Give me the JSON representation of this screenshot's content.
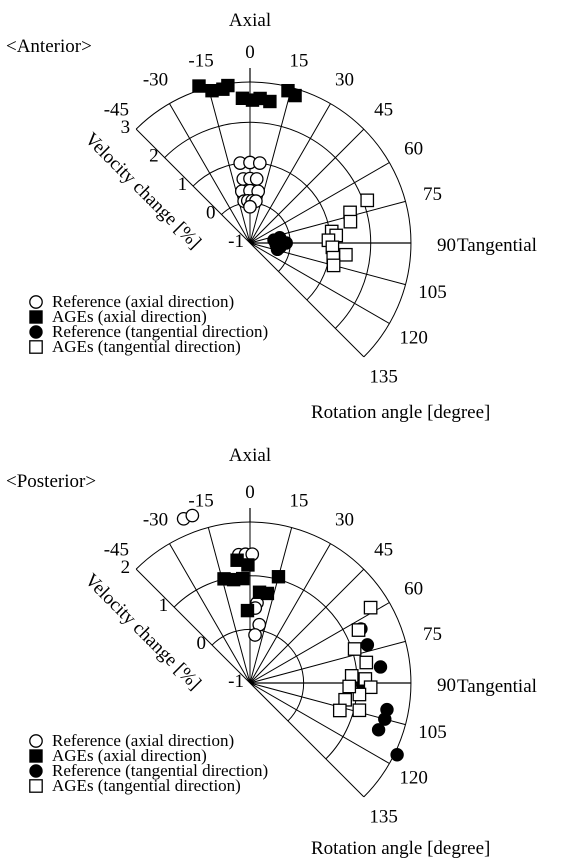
{
  "charts": [
    {
      "panel_label": "<Anterior>",
      "axial_label": "Axial",
      "tangential_label": "Tangential",
      "radial_axis_label": "Velocity change [%]",
      "angle_axis_label": "Rotation angle [degree]"
    },
    {
      "panel_label": "<Posterior>",
      "axial_label": "Axial",
      "tangential_label": "Tangential",
      "radial_axis_label": "Velocity change [%]",
      "angle_axis_label": "Rotation angle [degree]"
    }
  ],
  "chart_data": [
    {
      "type": "scatter",
      "coordinate_system": "polar",
      "angle_ticks": [
        "-45",
        "-30",
        "-15",
        "0",
        "15",
        "30",
        "45",
        "60",
        "75",
        "90",
        "105",
        "120",
        "135"
      ],
      "angle_range": [
        -45,
        135
      ],
      "radial_ticks": [
        "-1",
        "0",
        "1",
        "2",
        "3"
      ],
      "radial_range": [
        -1,
        3
      ],
      "grid": true,
      "legend_position": "bottom-left",
      "legend": [
        {
          "label": "Reference (axial direction)",
          "marker": "open-circle"
        },
        {
          "label": "AGEs (axial direction)",
          "marker": "filled-square"
        },
        {
          "label": "Reference (tangential direction)",
          "marker": "filled-circle"
        },
        {
          "label": "AGEs (tangential direction)",
          "marker": "open-square"
        }
      ],
      "series": [
        {
          "name": "Reference (axial direction)",
          "marker": "open-circle",
          "points": [
            [
              -7,
              1.0
            ],
            [
              0,
              1.0
            ],
            [
              7,
              1.0
            ],
            [
              -6,
              0.6
            ],
            [
              0,
              0.6
            ],
            [
              6,
              0.6
            ],
            [
              -9,
              0.3
            ],
            [
              0,
              0.3
            ],
            [
              9,
              0.3
            ],
            [
              -8,
              0.05
            ],
            [
              -3,
              0.05
            ],
            [
              3,
              0.05
            ],
            [
              8,
              0.05
            ],
            [
              0,
              -0.1
            ]
          ]
        },
        {
          "name": "AGEs (axial direction)",
          "marker": "filled-square",
          "points": [
            [
              -18,
              3.1
            ],
            [
              -14,
              2.9
            ],
            [
              -10,
              2.88
            ],
            [
              -8,
              2.95
            ],
            [
              -3,
              2.6
            ],
            [
              1,
              2.55
            ],
            [
              4,
              2.6
            ],
            [
              8,
              2.55
            ],
            [
              14,
              2.9
            ],
            [
              17,
              2.83
            ]
          ]
        },
        {
          "name": "Reference (tangential direction)",
          "marker": "filled-circle",
          "points": [
            [
              83,
              -0.4
            ],
            [
              88,
              -0.3
            ],
            [
              93,
              -0.35
            ],
            [
              98,
              -0.25
            ],
            [
              103,
              -0.3
            ],
            [
              80,
              -0.25
            ],
            [
              90,
              -0.1
            ]
          ]
        },
        {
          "name": "AGEs (tangential direction)",
          "marker": "open-square",
          "points": [
            [
              70,
              2.1
            ],
            [
              73,
              1.6
            ],
            [
              78,
              1.55
            ],
            [
              82,
              1.05
            ],
            [
              85,
              1.15
            ],
            [
              88,
              0.95
            ],
            [
              93,
              1.05
            ],
            [
              97,
              1.4
            ],
            [
              100,
              1.1
            ],
            [
              105,
              1.15
            ]
          ]
        }
      ]
    },
    {
      "type": "scatter",
      "coordinate_system": "polar",
      "angle_ticks": [
        "-45",
        "-30",
        "-15",
        "0",
        "15",
        "30",
        "45",
        "60",
        "75",
        "90",
        "105",
        "120",
        "135"
      ],
      "angle_range": [
        -45,
        135
      ],
      "radial_ticks": [
        "-1",
        "0",
        "1",
        "2"
      ],
      "radial_range": [
        -1,
        2
      ],
      "grid": true,
      "legend_position": "bottom-left",
      "legend": [
        {
          "label": "Reference (axial direction)",
          "marker": "open-circle"
        },
        {
          "label": "AGEs (axial direction)",
          "marker": "filled-square"
        },
        {
          "label": "Reference (tangential direction)",
          "marker": "filled-circle"
        },
        {
          "label": "AGEs (tangential direction)",
          "marker": "open-square"
        }
      ],
      "series": [
        {
          "name": "Reference (axial direction)",
          "marker": "open-circle",
          "points": [
            [
              -22,
              2.3
            ],
            [
              -19,
              2.3
            ],
            [
              -5,
              1.4
            ],
            [
              -2,
              1.4
            ],
            [
              1,
              1.4
            ],
            [
              5,
              0.5
            ],
            [
              9,
              0.1
            ],
            [
              4,
              0.4
            ],
            [
              6,
              -0.1
            ]
          ]
        },
        {
          "name": "AGEs (axial direction)",
          "marker": "filled-square",
          "points": [
            [
              -14,
              1.0
            ],
            [
              -9,
              0.95
            ],
            [
              -4,
              0.95
            ],
            [
              -1,
              1.2
            ],
            [
              6,
              0.7
            ],
            [
              11,
              0.7
            ],
            [
              15,
              1.05
            ],
            [
              -2,
              0.35
            ],
            [
              -6,
              1.3
            ]
          ]
        },
        {
          "name": "Reference (tangential direction)",
          "marker": "filled-circle",
          "points": [
            [
              64,
              1.3
            ],
            [
              72,
              1.3
            ],
            [
              83,
              1.45
            ],
            [
              101,
              1.6
            ],
            [
              105,
              1.6
            ],
            [
              110,
              1.55
            ],
            [
              116,
              2.05
            ],
            [
              91,
              1.1
            ]
          ]
        },
        {
          "name": "AGEs (tangential direction)",
          "marker": "open-square",
          "points": [
            [
              58,
              1.65
            ],
            [
              64,
              1.25
            ],
            [
              72,
              1.05
            ],
            [
              80,
              1.2
            ],
            [
              86,
              0.9
            ],
            [
              88,
              1.15
            ],
            [
              92,
              1.25
            ],
            [
              96,
              1.05
            ],
            [
              100,
              0.8
            ],
            [
              107,
              0.75
            ],
            [
              92,
              0.85
            ],
            [
              104,
              1.1
            ]
          ]
        }
      ]
    }
  ]
}
